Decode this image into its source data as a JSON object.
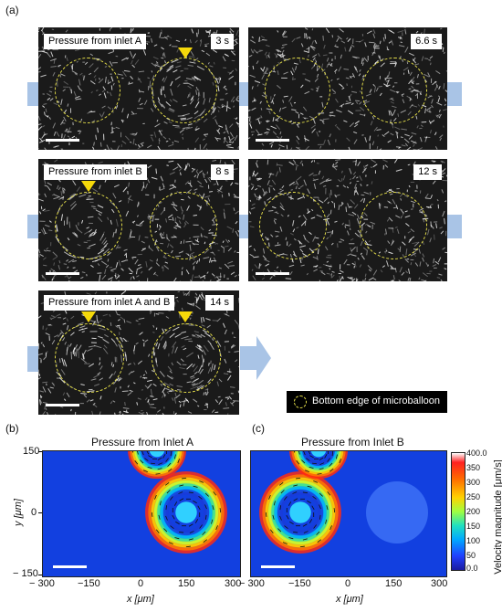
{
  "panels": {
    "a_label": "(a)",
    "b_label": "(b)",
    "c_label": "(c)"
  },
  "micrographs": [
    {
      "caption": "Pressure from inlet A",
      "time": "3 s"
    },
    {
      "caption": "",
      "time": "6.6 s"
    },
    {
      "caption": "Pressure from inlet B",
      "time": "8 s"
    },
    {
      "caption": "",
      "time": "12 s"
    },
    {
      "caption": "Pressure from inlet A and B",
      "time": "14 s"
    }
  ],
  "legend": {
    "text": "Bottom edge of microballoon"
  },
  "colors": {
    "inlet_arrow": "#a9c4e6",
    "ring": "#e6e04a",
    "marker": "#f5d90a",
    "field_background": "#1240e0"
  },
  "plots": [
    {
      "title": "Pressure from Inlet A"
    },
    {
      "title": "Pressure from Inlet B"
    }
  ],
  "axes": {
    "x_ticks": [
      "− 300",
      "−150",
      "0",
      "150",
      "300"
    ],
    "y_ticks": [
      "150",
      "0",
      "− 150"
    ],
    "x_label": "x [μm]",
    "y_label": "y [μm]"
  },
  "colorbar": {
    "label": "Velocity magnitude [μm/s]",
    "ticks": [
      "400.0",
      "350",
      "300",
      "250",
      "200",
      "150",
      "100",
      "50",
      "0.0"
    ],
    "range": [
      0,
      400
    ]
  }
}
